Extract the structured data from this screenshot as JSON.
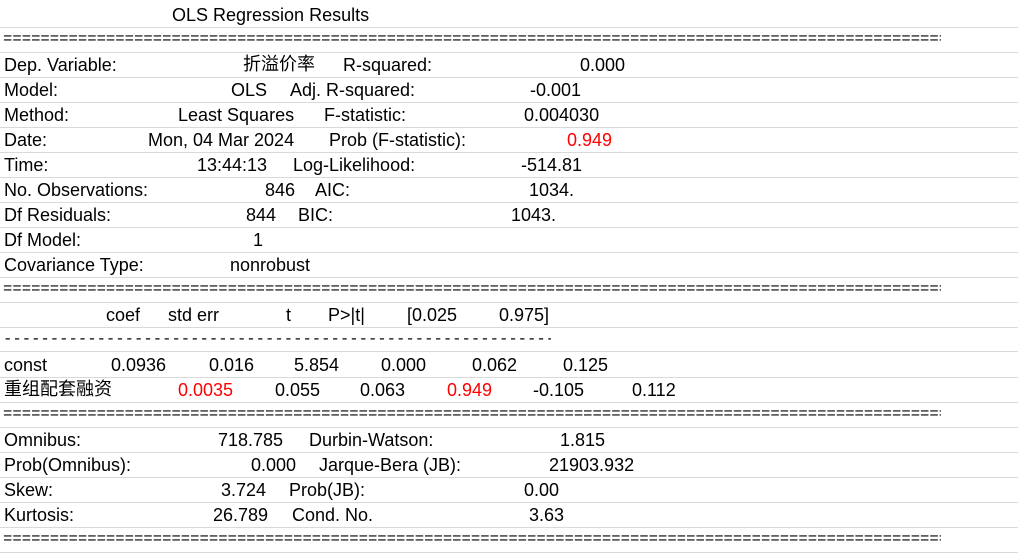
{
  "title": "OLS Regression Results",
  "rules": {
    "equals": "===============================================================================================================",
    "dashes": "------------------------------------------------------------------------------------------------------------"
  },
  "summary": {
    "dep_variable_label": "Dep. Variable:",
    "dep_variable_value": "折溢价率",
    "r_squared_label": "R-squared:",
    "r_squared_value": "0.000",
    "model_label": "Model:",
    "model_value": "OLS",
    "adj_r_squared_label": "Adj. R-squared:",
    "adj_r_squared_value": "-0.001",
    "method_label": "Method:",
    "method_value": "Least Squares",
    "f_statistic_label": "F-statistic:",
    "f_statistic_value": "0.004030",
    "date_label": "Date:",
    "date_value": "Mon, 04 Mar 2024",
    "prob_f_label": "Prob (F-statistic):",
    "prob_f_value": "0.949",
    "time_label": "Time:",
    "time_value": "13:44:13",
    "log_likelihood_label": "Log-Likelihood:",
    "log_likelihood_value": "-514.81",
    "nobs_label": "No. Observations:",
    "nobs_value": "846",
    "aic_label": "AIC:",
    "aic_value": "1034.",
    "df_resid_label": "Df Residuals:",
    "df_resid_value": "844",
    "bic_label": "BIC:",
    "bic_value": "1043.",
    "df_model_label": "Df Model:",
    "df_model_value": "1",
    "cov_type_label": "Covariance Type:",
    "cov_type_value": "nonrobust"
  },
  "coef_table": {
    "headers": [
      "coef",
      "std err",
      "t",
      "P>|t|",
      "[0.025",
      "0.975]"
    ],
    "rows": [
      {
        "name": "const",
        "coef": "0.0936",
        "std_err": "0.016",
        "t": "5.854",
        "p": "0.000",
        "lo": "0.062",
        "hi": "0.125"
      },
      {
        "name": "重组配套融资",
        "coef": "0.0035",
        "std_err": "0.055",
        "t": "0.063",
        "p": "0.949",
        "lo": "-0.105",
        "hi": "0.112"
      }
    ]
  },
  "diagnostics": {
    "omnibus_label": "Omnibus:",
    "omnibus_value": "718.785",
    "durbin_watson_label": "Durbin-Watson:",
    "durbin_watson_value": "1.815",
    "prob_omnibus_label": "Prob(Omnibus):",
    "prob_omnibus_value": "0.000",
    "jarque_bera_label": "Jarque-Bera (JB):",
    "jarque_bera_value": "21903.932",
    "skew_label": "Skew:",
    "skew_value": "3.724",
    "prob_jb_label": "Prob(JB):",
    "prob_jb_value": "0.00",
    "kurtosis_label": "Kurtosis:",
    "kurtosis_value": "26.789",
    "cond_no_label": "Cond. No.",
    "cond_no_value": "3.63"
  },
  "colors": {
    "highlight": "#ff0000",
    "gridline": "#d9d9d9"
  }
}
